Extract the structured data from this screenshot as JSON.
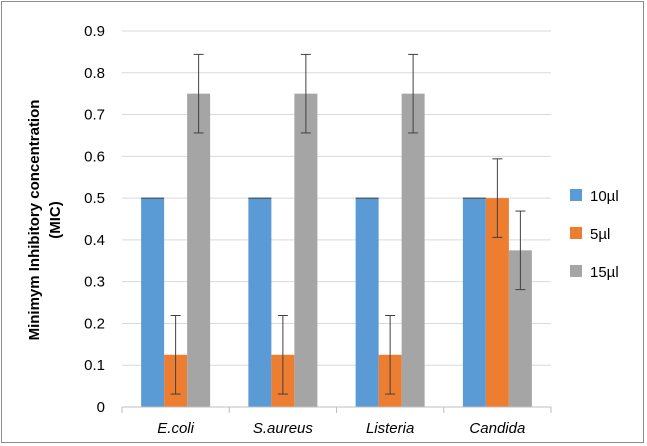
{
  "chart_data": {
    "type": "bar",
    "categories": [
      "E.coli",
      "S.aureus",
      "Listeria",
      "Candida"
    ],
    "series": [
      {
        "name": "10µl",
        "color": "#5b9bd5",
        "values": [
          0.5,
          0.5,
          0.5,
          0.5
        ],
        "errors": [
          0,
          0,
          0,
          0
        ]
      },
      {
        "name": "5µl",
        "color": "#ed7d31",
        "values": [
          0.125,
          0.125,
          0.125,
          0.5
        ],
        "errors": [
          0.094,
          0.094,
          0.094,
          0.094
        ]
      },
      {
        "name": "15µl",
        "color": "#a5a5a5",
        "values": [
          0.75,
          0.75,
          0.75,
          0.375
        ],
        "errors": [
          0.094,
          0.094,
          0.094,
          0.094
        ]
      }
    ],
    "ylabel_line1": "Minimym Inhibitory concentration",
    "ylabel_line2": "(MIC)",
    "xlabel": "",
    "ylim": [
      0,
      0.9
    ],
    "yticks": [
      0,
      0.1,
      0.2,
      0.3,
      0.4,
      0.5,
      0.6,
      0.7,
      0.8,
      0.9
    ],
    "ytick_labels": [
      "0",
      "0.1",
      "0.2",
      "0.3",
      "0.4",
      "0.5",
      "0.6",
      "0.7",
      "0.8",
      "0.9"
    ],
    "grid": true,
    "legend_position": "right",
    "gridline_color": "#d9d9d9",
    "axis_color": "#bfbfbf",
    "errorbar_color": "#404040"
  }
}
